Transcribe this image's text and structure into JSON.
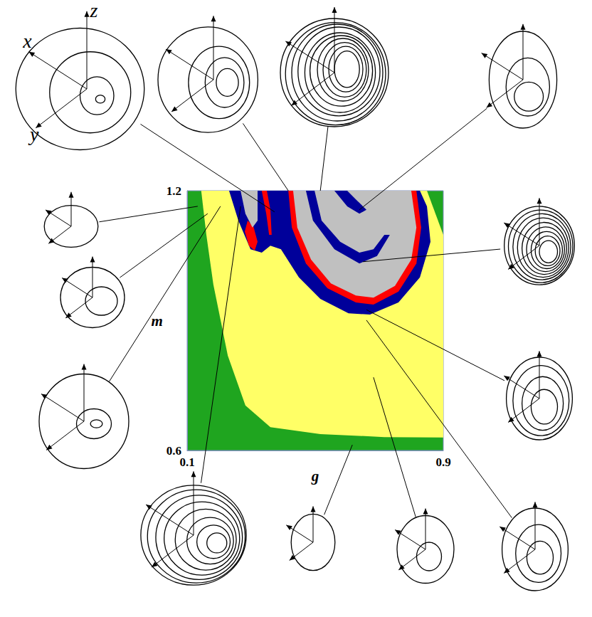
{
  "chart_data": {
    "type": "region_map",
    "xlabel": "g",
    "ylabel": "m",
    "xlim": [
      0.1,
      0.9
    ],
    "ylim": [
      0.6,
      1.2
    ],
    "xticks": [
      0.1,
      0.9
    ],
    "yticks": [
      0.6,
      1.2
    ],
    "color": "#1fa51f",
    "regions": [
      {
        "color": "#ffff66",
        "polygons": [
          [
            [
              0.144,
              1.2
            ],
            [
              0.849,
              1.2
            ],
            [
              0.9,
              1.098
            ],
            [
              0.9,
              0.63
            ],
            [
              0.716,
              0.631
            ],
            [
              0.516,
              0.638
            ],
            [
              0.36,
              0.654
            ],
            [
              0.282,
              0.704
            ],
            [
              0.227,
              0.819
            ],
            [
              0.182,
              0.983
            ],
            [
              0.16,
              1.098
            ]
          ]
        ]
      },
      {
        "color": "#00009a",
        "polygons": [
          [
            [
              0.231,
              1.2
            ],
            [
              0.26,
              1.131
            ],
            [
              0.298,
              1.065
            ],
            [
              0.333,
              1.057
            ],
            [
              0.36,
              1.073
            ],
            [
              0.393,
              1.065
            ],
            [
              0.449,
              1.0
            ],
            [
              0.516,
              0.95
            ],
            [
              0.604,
              0.917
            ],
            [
              0.671,
              0.914
            ],
            [
              0.76,
              0.942
            ],
            [
              0.827,
              1.0
            ],
            [
              0.86,
              1.082
            ],
            [
              0.849,
              1.164
            ],
            [
              0.827,
              1.2
            ]
          ]
        ]
      },
      {
        "color": "#ff0000",
        "polygons": [
          [
            [
              0.416,
              1.2
            ],
            [
              0.427,
              1.115
            ],
            [
              0.471,
              1.032
            ],
            [
              0.538,
              0.975
            ],
            [
              0.627,
              0.942
            ],
            [
              0.682,
              0.937
            ],
            [
              0.76,
              0.967
            ],
            [
              0.816,
              1.032
            ],
            [
              0.831,
              1.115
            ],
            [
              0.816,
              1.2
            ]
          ],
          [
            [
              0.289,
              1.131
            ],
            [
              0.307,
              1.118
            ],
            [
              0.32,
              1.082
            ],
            [
              0.311,
              1.062
            ],
            [
              0.293,
              1.073
            ],
            [
              0.28,
              1.106
            ]
          ],
          [
            [
              0.333,
              1.2
            ],
            [
              0.347,
              1.147
            ],
            [
              0.356,
              1.098
            ],
            [
              0.364,
              1.098
            ],
            [
              0.36,
              1.156
            ],
            [
              0.349,
              1.2
            ]
          ]
        ]
      },
      {
        "color": "#c0c0c0",
        "polygons": [
          [
            [
              0.431,
              1.2
            ],
            [
              0.444,
              1.115
            ],
            [
              0.487,
              1.041
            ],
            [
              0.549,
              0.986
            ],
            [
              0.627,
              0.958
            ],
            [
              0.682,
              0.953
            ],
            [
              0.749,
              0.98
            ],
            [
              0.8,
              1.041
            ],
            [
              0.816,
              1.115
            ],
            [
              0.8,
              1.2
            ]
          ],
          [
            [
              0.267,
              1.2
            ],
            [
              0.282,
              1.147
            ],
            [
              0.304,
              1.115
            ],
            [
              0.32,
              1.131
            ],
            [
              0.32,
              1.2
            ]
          ]
        ]
      },
      {
        "color": "#00009a",
        "polygons": [
          [
            [
              0.471,
              1.2
            ],
            [
              0.493,
              1.131
            ],
            [
              0.56,
              1.065
            ],
            [
              0.638,
              1.032
            ],
            [
              0.693,
              1.049
            ],
            [
              0.733,
              1.098
            ],
            [
              0.716,
              1.098
            ],
            [
              0.682,
              1.065
            ],
            [
              0.638,
              1.057
            ],
            [
              0.578,
              1.082
            ],
            [
              0.52,
              1.131
            ],
            [
              0.498,
              1.2
            ]
          ],
          [
            [
              0.56,
              1.2
            ],
            [
              0.6,
              1.164
            ],
            [
              0.638,
              1.147
            ],
            [
              0.66,
              1.156
            ],
            [
              0.627,
              1.18
            ],
            [
              0.6,
              1.2
            ]
          ]
        ]
      }
    ],
    "insets": [
      {
        "point": [
          0.373,
          1.151
        ],
        "axis_labels": [
          "x",
          "y",
          "z"
        ],
        "loops": [
          [
            -0.1,
            0,
            0.95,
            0.9
          ],
          [
            0.05,
            0.05,
            0.6,
            0.6
          ],
          [
            0.15,
            0.1,
            0.25,
            0.28
          ],
          [
            0.2,
            0.15,
            0.07,
            0.06
          ]
        ]
      },
      {
        "point": [
          0.416,
          1.2
        ],
        "loops": [
          [
            -0.1,
            0,
            0.9,
            0.95
          ],
          [
            0.1,
            0.05,
            0.55,
            0.65
          ],
          [
            0.2,
            0.05,
            0.35,
            0.45
          ],
          [
            0.25,
            0.05,
            0.2,
            0.25
          ]
        ]
      },
      {
        "point": [
          0.516,
          1.2
        ],
        "loops": [
          [
            0,
            0,
            0.95,
            0.95
          ],
          [
            0.02,
            0.02,
            0.88,
            0.9
          ],
          [
            0.05,
            0,
            0.8,
            0.85
          ],
          [
            0.08,
            -0.02,
            0.72,
            0.78
          ],
          [
            0.1,
            0,
            0.62,
            0.7
          ],
          [
            0.12,
            -0.03,
            0.55,
            0.62
          ],
          [
            0.15,
            -0.05,
            0.45,
            0.55
          ],
          [
            0.18,
            -0.05,
            0.38,
            0.48
          ],
          [
            0.2,
            -0.06,
            0.3,
            0.4
          ],
          [
            0.22,
            -0.06,
            0.22,
            0.32
          ]
        ]
      },
      {
        "point": [
          0.638,
          1.156
        ],
        "loops": [
          [
            0,
            0,
            0.7,
            1.0
          ],
          [
            0.1,
            0.15,
            0.45,
            0.6
          ],
          [
            0.12,
            0.35,
            0.3,
            0.3
          ]
        ]
      },
      {
        "point": [
          0.133,
          1.164
        ],
        "loops": [
          [
            0,
            0,
            0.9,
            0.7
          ]
        ]
      },
      {
        "point": [
          0.164,
          1.147
        ],
        "loops": [
          [
            0,
            0,
            0.9,
            0.85
          ],
          [
            0.25,
            0.1,
            0.45,
            0.4
          ]
        ]
      },
      {
        "point": [
          0.204,
          1.164
        ],
        "loops": [
          [
            0,
            0,
            0.9,
            0.95
          ],
          [
            0.2,
            0.05,
            0.35,
            0.3
          ],
          [
            0.25,
            0.05,
            0.12,
            0.08
          ]
        ]
      },
      {
        "point": [
          0.267,
          1.164
        ],
        "loops": [
          [
            0,
            0,
            0.95,
            0.9
          ],
          [
            0.05,
            0.02,
            0.88,
            0.84
          ],
          [
            0.1,
            0.04,
            0.78,
            0.76
          ],
          [
            0.15,
            0.06,
            0.68,
            0.66
          ],
          [
            0.22,
            0.08,
            0.55,
            0.55
          ],
          [
            0.3,
            0.1,
            0.42,
            0.42
          ],
          [
            0.36,
            0.12,
            0.3,
            0.3
          ],
          [
            0.42,
            0.14,
            0.18,
            0.18
          ]
        ]
      },
      {
        "point": [
          0.616,
          0.613
        ],
        "loops": [
          [
            0,
            0,
            0.7,
            0.9
          ]
        ]
      },
      {
        "point": [
          0.682,
          0.769
        ],
        "loops": [
          [
            0,
            0,
            0.8,
            0.95
          ],
          [
            0.1,
            0.2,
            0.35,
            0.4
          ]
        ]
      },
      {
        "point": [
          0.66,
          0.901
        ],
        "loops": [
          [
            0,
            0,
            0.8,
            1.0
          ],
          [
            0.08,
            0.1,
            0.55,
            0.7
          ],
          [
            0.12,
            0.2,
            0.32,
            0.4
          ]
        ]
      },
      {
        "point": [
          0.66,
          0.925
        ],
        "loops": [
          [
            0,
            0,
            0.8,
            1.0
          ],
          [
            0.04,
            0.05,
            0.68,
            0.85
          ],
          [
            0.08,
            0.12,
            0.5,
            0.65
          ],
          [
            0.12,
            0.2,
            0.32,
            0.42
          ]
        ]
      },
      {
        "point": [
          0.649,
          1.036
        ],
        "loops": [
          [
            0,
            0,
            0.85,
            0.95
          ],
          [
            0.03,
            0.02,
            0.78,
            0.88
          ],
          [
            0.06,
            0.03,
            0.7,
            0.8
          ],
          [
            0.09,
            0.05,
            0.62,
            0.72
          ],
          [
            0.12,
            0.07,
            0.54,
            0.63
          ],
          [
            0.15,
            0.09,
            0.46,
            0.54
          ],
          [
            0.18,
            0.11,
            0.38,
            0.45
          ],
          [
            0.2,
            0.13,
            0.3,
            0.36
          ],
          [
            0.22,
            0.15,
            0.22,
            0.27
          ]
        ]
      }
    ]
  }
}
